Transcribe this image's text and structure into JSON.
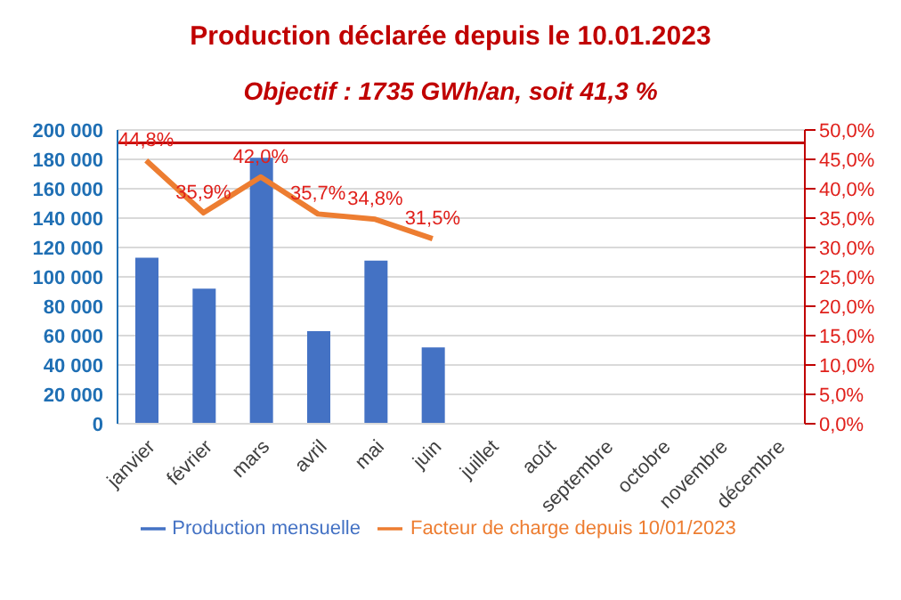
{
  "chart_data": {
    "type": "bar",
    "title": "Production déclarée depuis le 10.01.2023",
    "subtitle": "Objectif : 1735 GWh/an, soit 41,3 %",
    "categories": [
      "janvier",
      "février",
      "mars",
      "avril",
      "mai",
      "juin",
      "juillet",
      "août",
      "septembre",
      "octobre",
      "novembre",
      "décembre"
    ],
    "series": [
      {
        "name": "Production mensuelle",
        "color": "#4472c4",
        "values": [
          113000,
          92000,
          181000,
          63000,
          111000,
          52000,
          null,
          null,
          null,
          null,
          null,
          null
        ]
      },
      {
        "name": "Facteur de charge depuis 10/01/2023",
        "type": "line",
        "axis": "y2",
        "color": "#ed7d31",
        "values": [
          44.8,
          35.9,
          42.0,
          35.7,
          34.8,
          31.5,
          null,
          null,
          null,
          null,
          null,
          null
        ],
        "value_labels": [
          "44,8%",
          "35,9%",
          "42,0%",
          "35,7%",
          "34,8%",
          "31,5%",
          null,
          null,
          null,
          null,
          null,
          null
        ]
      }
    ],
    "ylim": [
      0,
      200000
    ],
    "yticks": [
      0,
      20000,
      40000,
      60000,
      80000,
      100000,
      120000,
      140000,
      160000,
      180000,
      200000
    ],
    "y2lim": [
      0,
      50
    ],
    "y2ticks": [
      {
        "value": 0,
        "label": "0,0%"
      },
      {
        "value": 5,
        "label": "5,0%"
      },
      {
        "value": 10,
        "label": "10,0%"
      },
      {
        "value": 15,
        "label": "15,0%"
      },
      {
        "value": 20,
        "label": "20,0%"
      },
      {
        "value": 25,
        "label": "25,0%"
      },
      {
        "value": 30,
        "label": "30,0%"
      },
      {
        "value": 35,
        "label": "35,0%"
      },
      {
        "value": 40,
        "label": "40,0%"
      },
      {
        "value": 45,
        "label": "45,0%"
      },
      {
        "value": 50,
        "label": "50,0%"
      }
    ],
    "ref_lines": [
      {
        "axis": "y2",
        "value": 47.8,
        "color": "#c00000"
      }
    ],
    "grid": "y",
    "legend": "bottom",
    "marker": "none"
  }
}
